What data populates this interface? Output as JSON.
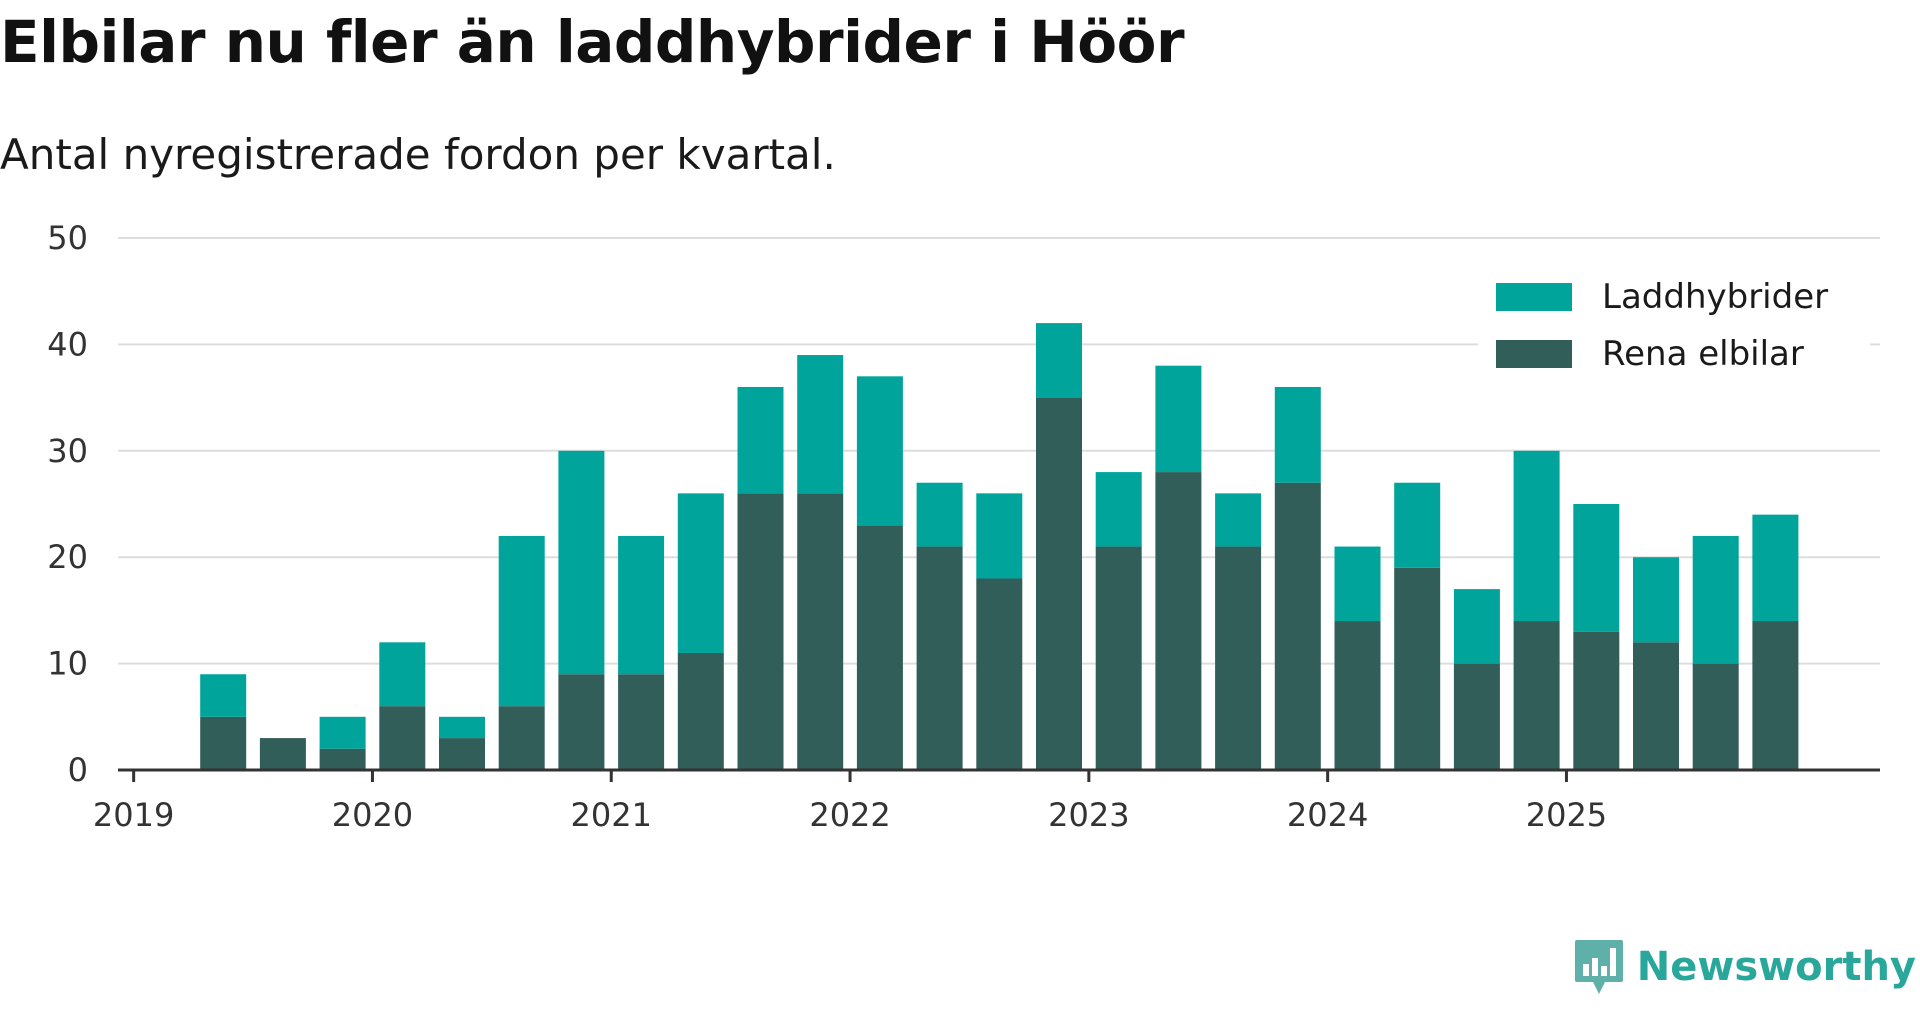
{
  "title": "Elbilar nu fler än laddhybrider i Höör",
  "subtitle": "Antal nyregistrerade fordon per kvartal.",
  "brand": "Newsworthy",
  "colors": {
    "phev": "#00a49a",
    "bev": "#325e59",
    "grid": "#dddddd",
    "axis": "#333333"
  },
  "chart_data": {
    "type": "bar",
    "stacked": true,
    "title": "Elbilar nu fler än laddhybrider i Höör",
    "subtitle": "Antal nyregistrerade fordon per kvartal.",
    "xlabel": "",
    "ylabel": "",
    "ylim": [
      0,
      50
    ],
    "yticks": [
      0,
      10,
      20,
      30,
      40,
      50
    ],
    "grid": true,
    "legend_position": "top-right",
    "xticks": [
      "2019",
      "2020",
      "2021",
      "2022",
      "2023",
      "2024",
      "2025"
    ],
    "categories": [
      "2019 Q1",
      "2019 Q2",
      "2019 Q3",
      "2019 Q4",
      "2020 Q1",
      "2020 Q2",
      "2020 Q3",
      "2020 Q4",
      "2021 Q1",
      "2021 Q2",
      "2021 Q3",
      "2021 Q4",
      "2022 Q1",
      "2022 Q2",
      "2022 Q3",
      "2022 Q4",
      "2023 Q1",
      "2023 Q2",
      "2023 Q3",
      "2023 Q4",
      "2024 Q1",
      "2024 Q2",
      "2024 Q3",
      "2024 Q4",
      "2025 Q1",
      "2025 Q2",
      "2025 Q3",
      "2025 Q4"
    ],
    "series": [
      {
        "name": "Rena elbilar",
        "color": "#325e59",
        "values": [
          null,
          5,
          3,
          2,
          6,
          3,
          6,
          9,
          9,
          11,
          26,
          26,
          23,
          21,
          18,
          35,
          21,
          28,
          21,
          27,
          14,
          19,
          10,
          14,
          13,
          12,
          10,
          14
        ]
      },
      {
        "name": "Laddhybrider",
        "color": "#00a49a",
        "values": [
          null,
          4,
          0,
          3,
          6,
          2,
          16,
          21,
          13,
          15,
          10,
          13,
          14,
          6,
          8,
          7,
          7,
          10,
          5,
          9,
          7,
          8,
          7,
          16,
          12,
          8,
          12,
          10
        ]
      }
    ],
    "legend": [
      "Laddhybrider",
      "Rena elbilar"
    ]
  }
}
